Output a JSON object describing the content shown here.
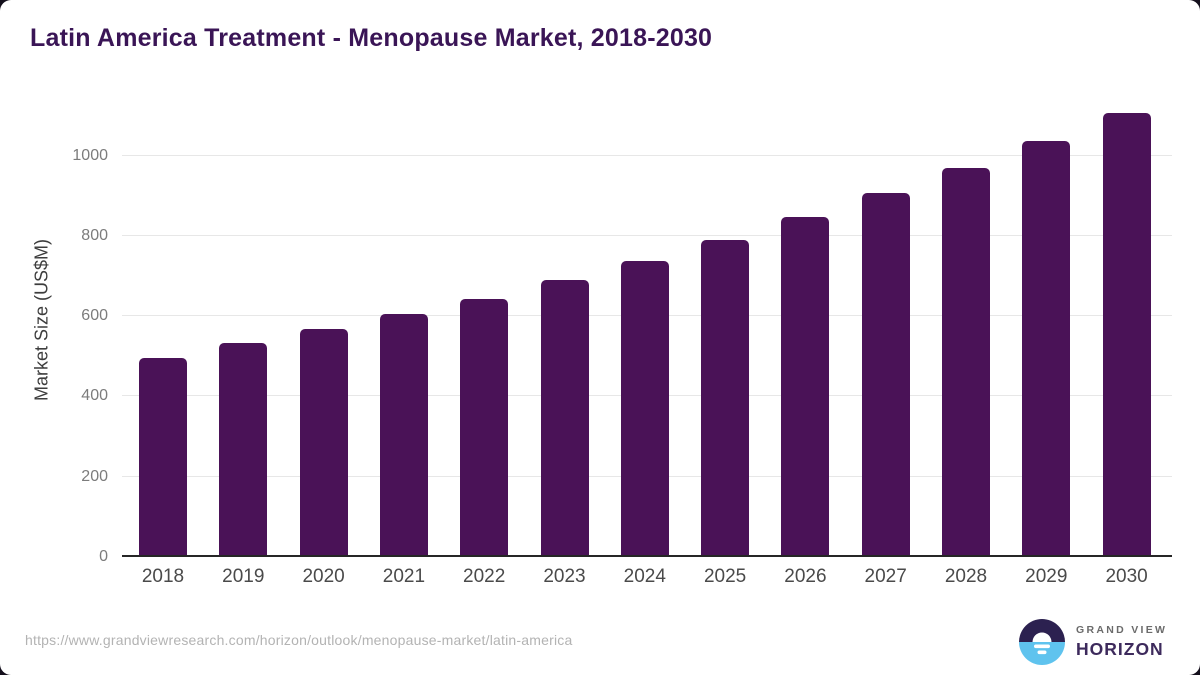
{
  "title": "Latin America Treatment - Menopause Market, 2018-2030",
  "chart_data": {
    "type": "bar",
    "title": "Latin America Treatment - Menopause Market, 2018-2030",
    "categories": [
      "2018",
      "2019",
      "2020",
      "2021",
      "2022",
      "2023",
      "2024",
      "2025",
      "2026",
      "2027",
      "2028",
      "2029",
      "2030"
    ],
    "values": [
      495,
      532,
      569,
      605,
      643,
      690,
      737,
      790,
      847,
      906,
      968,
      1035,
      1107
    ],
    "xlabel": "",
    "ylabel": "Market Size (US$M)",
    "ylim": [
      0,
      1138
    ],
    "yticks": [
      0,
      200,
      400,
      600,
      800,
      1000
    ],
    "grid": true,
    "legend": "none",
    "bar_color": "#4a1257"
  },
  "footer": {
    "source_url": "https://www.grandviewresearch.com/horizon/outlook/menopause-market/latin-america",
    "logo": {
      "top": "GRAND VIEW",
      "bottom": "HORIZON"
    }
  },
  "colors": {
    "bar": "#4a1257",
    "title_text": "#3a1556",
    "backdrop": "#140f1c",
    "gridline": "#e7e7e7",
    "axis": "#262626",
    "ytick_text": "#7c7c7c",
    "xtick_text": "#4a4a4a",
    "url_text": "#b3b3b3",
    "logo_dark": "#2c2150",
    "logo_blue": "#5fc3ee"
  },
  "icons": {
    "logo_mark": "horizon-sunrise-circle-icon"
  }
}
